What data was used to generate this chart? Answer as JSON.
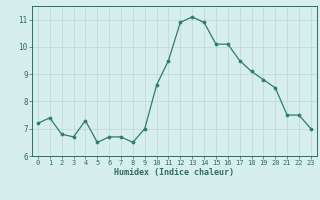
{
  "x": [
    0,
    1,
    2,
    3,
    4,
    5,
    6,
    7,
    8,
    9,
    10,
    11,
    12,
    13,
    14,
    15,
    16,
    17,
    18,
    19,
    20,
    21,
    22,
    23
  ],
  "y": [
    7.2,
    7.4,
    6.8,
    6.7,
    7.3,
    6.5,
    6.7,
    6.7,
    6.5,
    7.0,
    8.6,
    9.5,
    10.9,
    11.1,
    10.9,
    10.1,
    10.1,
    9.5,
    9.1,
    8.8,
    8.5,
    7.5,
    7.5,
    7.0
  ],
  "line_color": "#2e7d6e",
  "marker_color": "#2e7d6e",
  "bg_color": "#d6eeec",
  "grid_color": "#c0d8d4",
  "tick_color": "#2e6e5e",
  "xlabel": "Humidex (Indice chaleur)",
  "ylim": [
    6,
    11.5
  ],
  "xlim": [
    -0.5,
    23.5
  ],
  "yticks": [
    6,
    7,
    8,
    9,
    10,
    11
  ],
  "xticks": [
    0,
    1,
    2,
    3,
    4,
    5,
    6,
    7,
    8,
    9,
    10,
    11,
    12,
    13,
    14,
    15,
    16,
    17,
    18,
    19,
    20,
    21,
    22,
    23
  ],
  "fig_width": 3.2,
  "fig_height": 2.0,
  "dpi": 100
}
